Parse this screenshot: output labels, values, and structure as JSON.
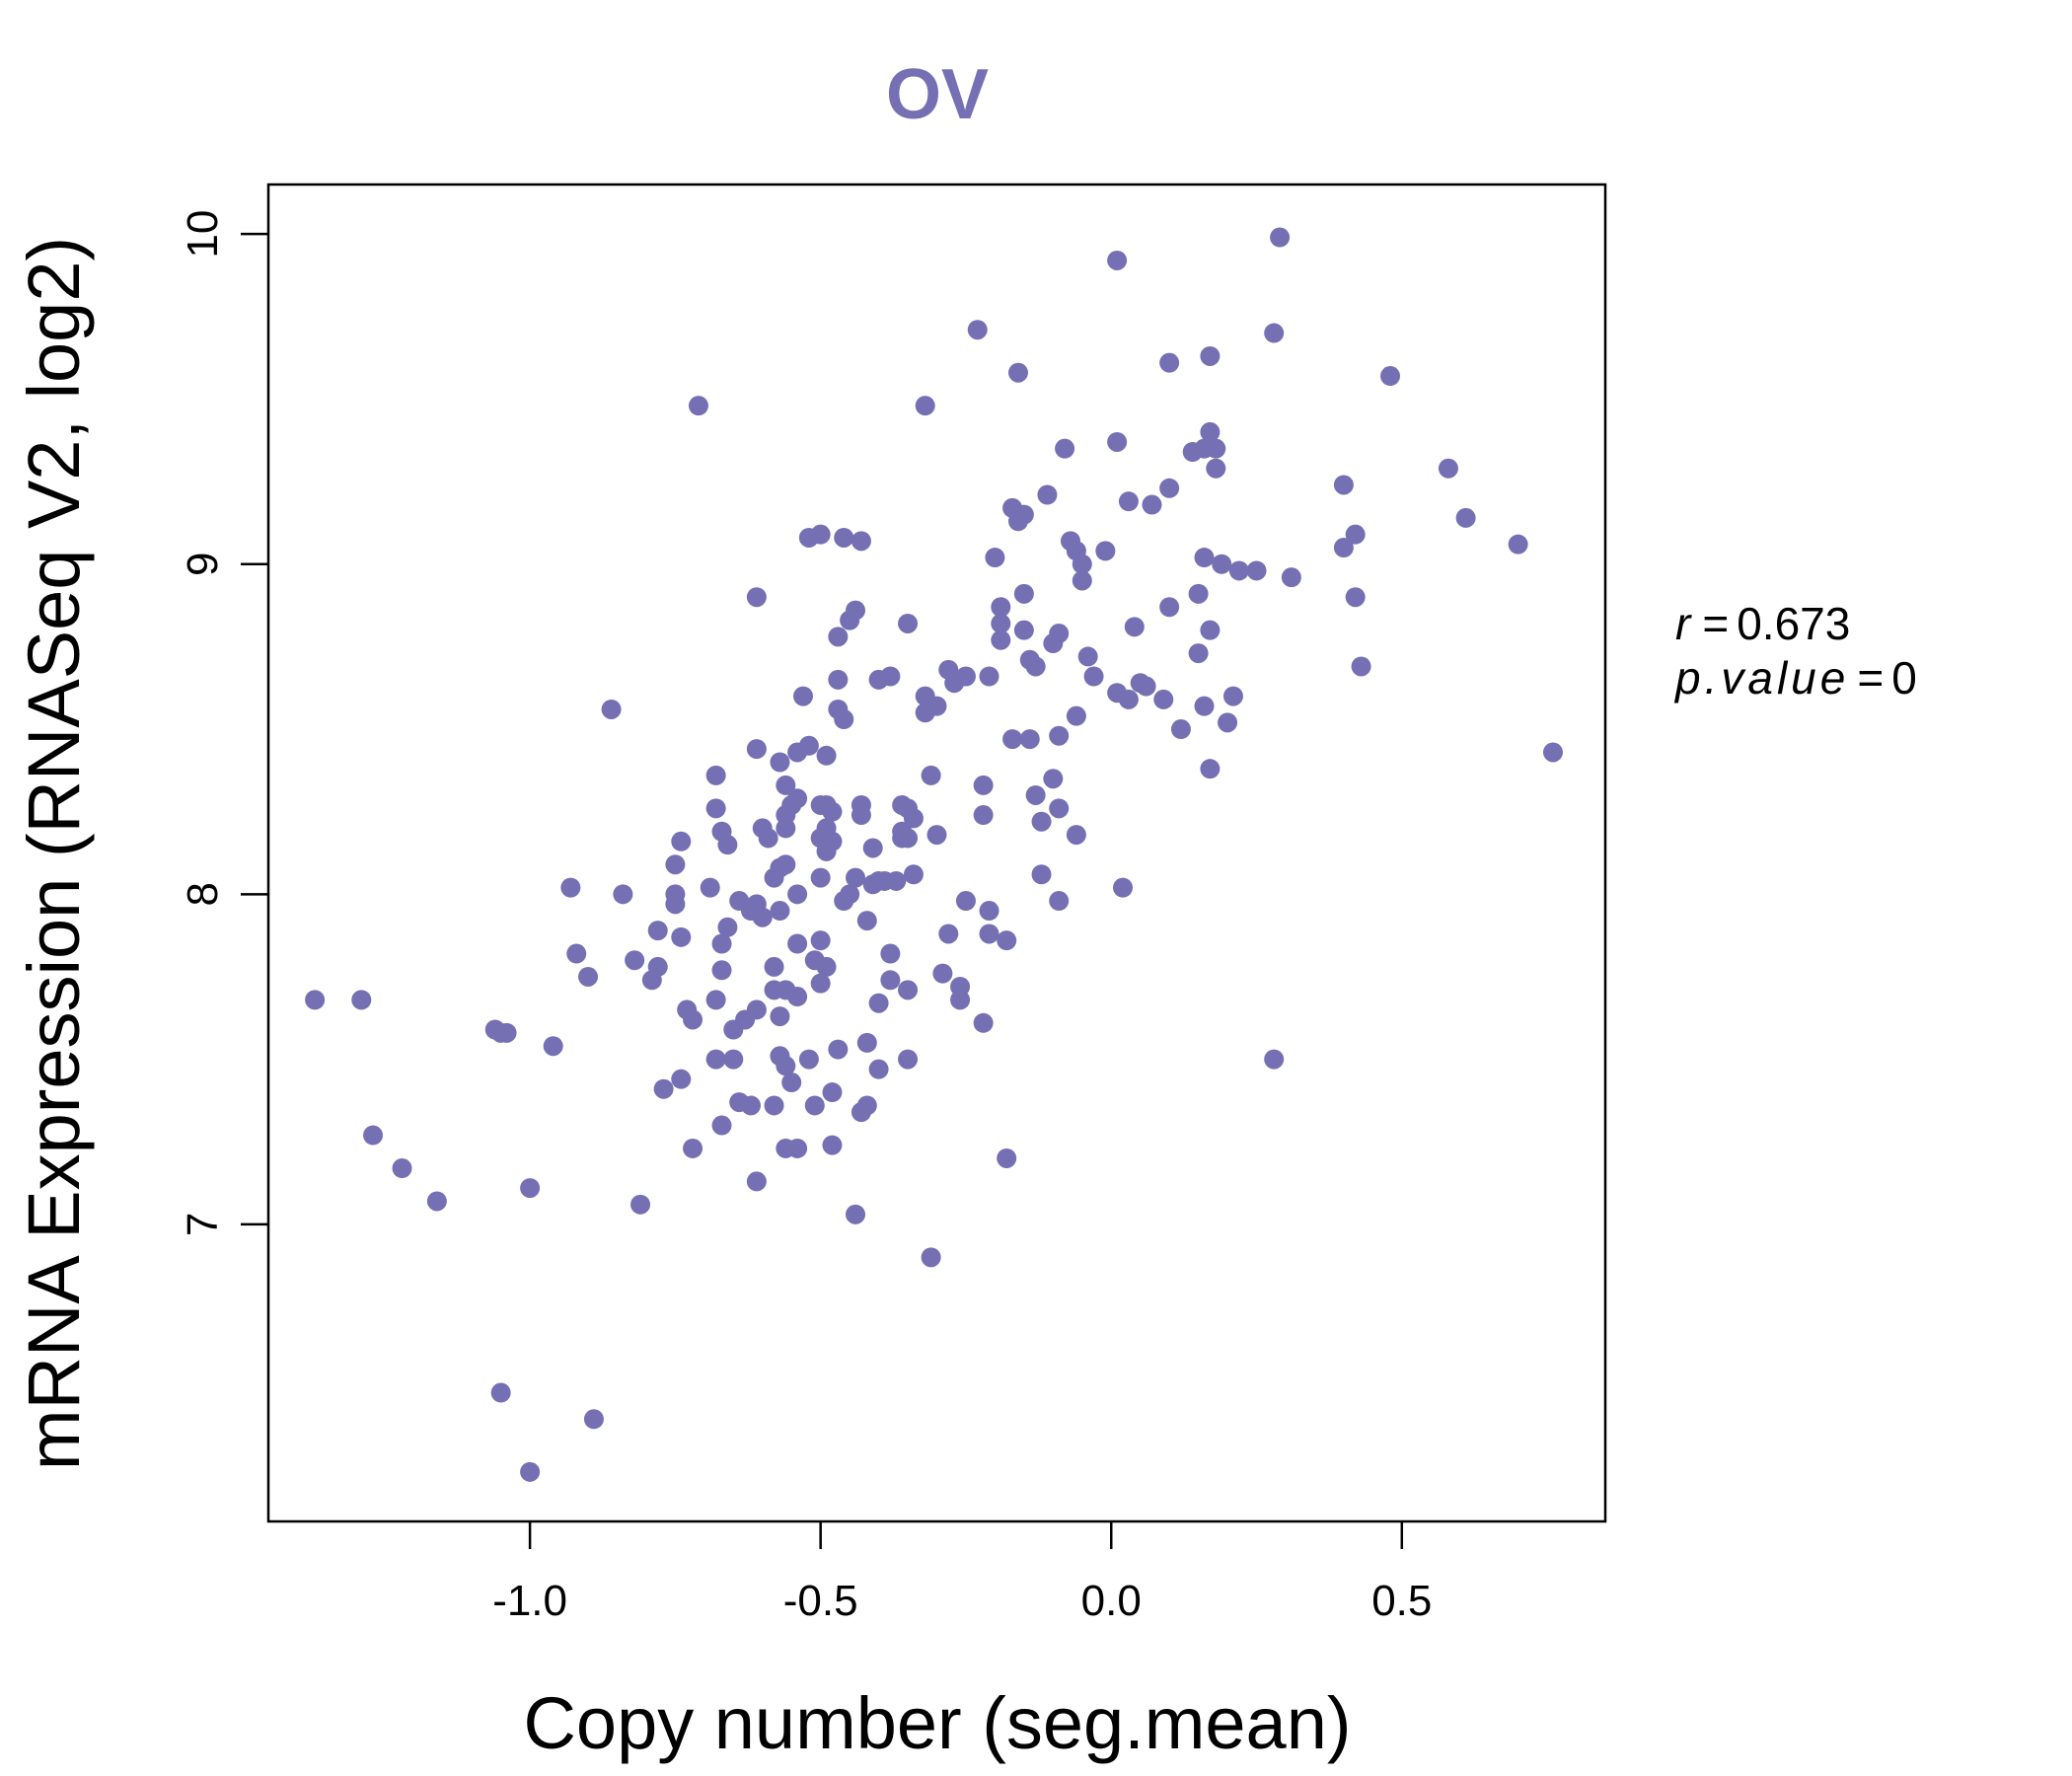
{
  "chart_data": {
    "type": "scatter",
    "title": "OV",
    "xlabel": "Copy number (seg.mean)",
    "ylabel": "mRNA Expression (RNASeq V2, log2)",
    "xlim": [
      -1.45,
      0.85
    ],
    "ylim": [
      6.1,
      10.15
    ],
    "xticks": [
      -1.0,
      -0.5,
      0.0,
      0.5
    ],
    "xtick_labels": [
      "-1.0",
      "-0.5",
      "0.0",
      "0.5"
    ],
    "yticks": [
      7,
      8,
      9,
      10
    ],
    "ytick_labels": [
      "7",
      "8",
      "9",
      "10"
    ],
    "color": "#7570b3",
    "stats": {
      "r_label": "r",
      "r_value": "0.673",
      "p_label": "p.value",
      "p_value": "0"
    },
    "points": [
      [
        -1.37,
        7.68
      ],
      [
        -1.29,
        7.68
      ],
      [
        -1.27,
        7.27
      ],
      [
        -1.22,
        7.17
      ],
      [
        -1.16,
        7.07
      ],
      [
        -1.06,
        7.59
      ],
      [
        -1.05,
        7.58
      ],
      [
        -1.05,
        6.49
      ],
      [
        -1.04,
        7.58
      ],
      [
        -1.0,
        7.11
      ],
      [
        -1.0,
        6.25
      ],
      [
        -0.96,
        7.54
      ],
      [
        -0.93,
        8.02
      ],
      [
        -0.92,
        7.82
      ],
      [
        -0.9,
        7.75
      ],
      [
        -0.89,
        6.41
      ],
      [
        -0.86,
        8.56
      ],
      [
        -0.84,
        8.0
      ],
      [
        -0.82,
        7.8
      ],
      [
        -0.81,
        7.06
      ],
      [
        -0.79,
        7.74
      ],
      [
        -0.78,
        7.89
      ],
      [
        -0.78,
        7.78
      ],
      [
        -0.77,
        7.41
      ],
      [
        -0.75,
        8.09
      ],
      [
        -0.75,
        8.0
      ],
      [
        -0.75,
        7.97
      ],
      [
        -0.74,
        8.16
      ],
      [
        -0.74,
        7.87
      ],
      [
        -0.74,
        7.44
      ],
      [
        -0.73,
        7.65
      ],
      [
        -0.72,
        7.23
      ],
      [
        -0.72,
        7.62
      ],
      [
        -0.71,
        9.48
      ],
      [
        -0.69,
        8.02
      ],
      [
        -0.68,
        8.36
      ],
      [
        -0.68,
        8.26
      ],
      [
        -0.68,
        7.68
      ],
      [
        -0.68,
        7.5
      ],
      [
        -0.67,
        8.19
      ],
      [
        -0.67,
        7.85
      ],
      [
        -0.67,
        7.77
      ],
      [
        -0.67,
        7.3
      ],
      [
        -0.66,
        8.15
      ],
      [
        -0.66,
        7.9
      ],
      [
        -0.65,
        7.59
      ],
      [
        -0.65,
        7.5
      ],
      [
        -0.64,
        7.98
      ],
      [
        -0.64,
        7.37
      ],
      [
        -0.63,
        7.62
      ],
      [
        -0.62,
        7.95
      ],
      [
        -0.62,
        7.36
      ],
      [
        -0.61,
        8.9
      ],
      [
        -0.61,
        8.44
      ],
      [
        -0.61,
        7.97
      ],
      [
        -0.61,
        7.65
      ],
      [
        -0.61,
        7.13
      ],
      [
        -0.6,
        8.2
      ],
      [
        -0.6,
        7.93
      ],
      [
        -0.59,
        8.17
      ],
      [
        -0.58,
        8.05
      ],
      [
        -0.58,
        7.78
      ],
      [
        -0.58,
        7.71
      ],
      [
        -0.58,
        7.36
      ],
      [
        -0.57,
        8.4
      ],
      [
        -0.57,
        8.08
      ],
      [
        -0.57,
        7.95
      ],
      [
        -0.57,
        7.63
      ],
      [
        -0.57,
        7.51
      ],
      [
        -0.56,
        8.33
      ],
      [
        -0.56,
        8.2
      ],
      [
        -0.56,
        8.24
      ],
      [
        -0.56,
        8.09
      ],
      [
        -0.56,
        7.71
      ],
      [
        -0.56,
        7.48
      ],
      [
        -0.56,
        7.23
      ],
      [
        -0.55,
        8.27
      ],
      [
        -0.55,
        7.43
      ],
      [
        -0.54,
        8.43
      ],
      [
        -0.54,
        8.29
      ],
      [
        -0.54,
        8.0
      ],
      [
        -0.54,
        7.85
      ],
      [
        -0.54,
        7.69
      ],
      [
        -0.54,
        7.23
      ],
      [
        -0.53,
        8.6
      ],
      [
        -0.52,
        8.45
      ],
      [
        -0.52,
        9.08
      ],
      [
        -0.52,
        7.5
      ],
      [
        -0.51,
        7.8
      ],
      [
        -0.51,
        7.36
      ],
      [
        -0.5,
        9.09
      ],
      [
        -0.5,
        8.27
      ],
      [
        -0.5,
        8.17
      ],
      [
        -0.5,
        8.05
      ],
      [
        -0.5,
        7.86
      ],
      [
        -0.5,
        7.73
      ],
      [
        -0.49,
        8.42
      ],
      [
        -0.49,
        8.27
      ],
      [
        -0.49,
        8.2
      ],
      [
        -0.49,
        8.13
      ],
      [
        -0.49,
        7.78
      ],
      [
        -0.48,
        8.25
      ],
      [
        -0.48,
        8.16
      ],
      [
        -0.48,
        7.4
      ],
      [
        -0.48,
        7.24
      ],
      [
        -0.47,
        8.78
      ],
      [
        -0.47,
        8.56
      ],
      [
        -0.47,
        8.65
      ],
      [
        -0.47,
        7.53
      ],
      [
        -0.46,
        9.08
      ],
      [
        -0.46,
        8.53
      ],
      [
        -0.46,
        7.98
      ],
      [
        -0.45,
        8.83
      ],
      [
        -0.45,
        8.0
      ],
      [
        -0.44,
        8.86
      ],
      [
        -0.44,
        8.05
      ],
      [
        -0.44,
        7.03
      ],
      [
        -0.43,
        9.07
      ],
      [
        -0.43,
        8.27
      ],
      [
        -0.43,
        8.24
      ],
      [
        -0.43,
        7.34
      ],
      [
        -0.42,
        7.92
      ],
      [
        -0.42,
        7.55
      ],
      [
        -0.42,
        7.36
      ],
      [
        -0.41,
        8.14
      ],
      [
        -0.41,
        8.03
      ],
      [
        -0.4,
        8.65
      ],
      [
        -0.4,
        8.04
      ],
      [
        -0.4,
        7.67
      ],
      [
        -0.4,
        7.47
      ],
      [
        -0.39,
        8.04
      ],
      [
        -0.38,
        8.66
      ],
      [
        -0.38,
        7.82
      ],
      [
        -0.38,
        7.74
      ],
      [
        -0.37,
        8.04
      ],
      [
        -0.36,
        8.27
      ],
      [
        -0.36,
        8.19
      ],
      [
        -0.36,
        8.17
      ],
      [
        -0.35,
        8.82
      ],
      [
        -0.35,
        8.26
      ],
      [
        -0.35,
        8.17
      ],
      [
        -0.35,
        7.71
      ],
      [
        -0.35,
        7.5
      ],
      [
        -0.34,
        8.23
      ],
      [
        -0.34,
        8.06
      ],
      [
        -0.32,
        9.48
      ],
      [
        -0.32,
        8.6
      ],
      [
        -0.32,
        8.55
      ],
      [
        -0.31,
        8.36
      ],
      [
        -0.31,
        6.9
      ],
      [
        -0.3,
        8.57
      ],
      [
        -0.3,
        8.18
      ],
      [
        -0.29,
        7.76
      ],
      [
        -0.28,
        8.68
      ],
      [
        -0.28,
        7.88
      ],
      [
        -0.27,
        8.64
      ],
      [
        -0.26,
        7.72
      ],
      [
        -0.26,
        7.68
      ],
      [
        -0.25,
        7.98
      ],
      [
        -0.25,
        8.66
      ],
      [
        -0.23,
        9.71
      ],
      [
        -0.22,
        8.33
      ],
      [
        -0.22,
        8.24
      ],
      [
        -0.22,
        7.61
      ],
      [
        -0.21,
        8.66
      ],
      [
        -0.21,
        7.95
      ],
      [
        -0.21,
        7.88
      ],
      [
        -0.2,
        9.02
      ],
      [
        -0.19,
        8.87
      ],
      [
        -0.19,
        8.82
      ],
      [
        -0.19,
        8.77
      ],
      [
        -0.18,
        7.2
      ],
      [
        -0.18,
        7.86
      ],
      [
        -0.17,
        9.17
      ],
      [
        -0.17,
        8.47
      ],
      [
        -0.16,
        9.58
      ],
      [
        -0.16,
        9.13
      ],
      [
        -0.15,
        9.15
      ],
      [
        -0.15,
        8.91
      ],
      [
        -0.15,
        8.8
      ],
      [
        -0.14,
        8.71
      ],
      [
        -0.14,
        8.47
      ],
      [
        -0.13,
        8.69
      ],
      [
        -0.13,
        8.3
      ],
      [
        -0.12,
        8.22
      ],
      [
        -0.12,
        8.06
      ],
      [
        -0.11,
        9.21
      ],
      [
        -0.1,
        8.76
      ],
      [
        -0.1,
        8.35
      ],
      [
        -0.09,
        8.79
      ],
      [
        -0.09,
        8.48
      ],
      [
        -0.09,
        8.26
      ],
      [
        -0.09,
        7.98
      ],
      [
        -0.08,
        9.35
      ],
      [
        -0.07,
        9.07
      ],
      [
        -0.06,
        9.04
      ],
      [
        -0.06,
        8.54
      ],
      [
        -0.06,
        8.18
      ],
      [
        -0.05,
        9.0
      ],
      [
        -0.05,
        8.95
      ],
      [
        -0.04,
        8.72
      ],
      [
        -0.03,
        8.66
      ],
      [
        -0.01,
        9.04
      ],
      [
        0.01,
        9.92
      ],
      [
        0.01,
        9.37
      ],
      [
        0.01,
        8.61
      ],
      [
        0.02,
        8.02
      ],
      [
        0.03,
        9.19
      ],
      [
        0.03,
        8.59
      ],
      [
        0.04,
        8.81
      ],
      [
        0.05,
        8.64
      ],
      [
        0.06,
        8.63
      ],
      [
        0.07,
        9.18
      ],
      [
        0.09,
        8.59
      ],
      [
        0.1,
        9.61
      ],
      [
        0.1,
        9.23
      ],
      [
        0.1,
        8.87
      ],
      [
        0.12,
        8.5
      ],
      [
        0.14,
        9.34
      ],
      [
        0.15,
        8.91
      ],
      [
        0.15,
        8.73
      ],
      [
        0.16,
        9.35
      ],
      [
        0.16,
        9.02
      ],
      [
        0.16,
        8.57
      ],
      [
        0.17,
        9.63
      ],
      [
        0.17,
        9.4
      ],
      [
        0.17,
        8.38
      ],
      [
        0.17,
        8.8
      ],
      [
        0.18,
        9.35
      ],
      [
        0.18,
        9.29
      ],
      [
        0.19,
        9.0
      ],
      [
        0.2,
        8.52
      ],
      [
        0.21,
        8.6
      ],
      [
        0.22,
        8.98
      ],
      [
        0.25,
        8.98
      ],
      [
        0.28,
        9.7
      ],
      [
        0.28,
        7.5
      ],
      [
        0.29,
        9.99
      ],
      [
        0.31,
        8.96
      ],
      [
        0.4,
        9.24
      ],
      [
        0.4,
        9.05
      ],
      [
        0.42,
        9.09
      ],
      [
        0.42,
        8.9
      ],
      [
        0.43,
        8.69
      ],
      [
        0.48,
        9.57
      ],
      [
        0.58,
        9.29
      ],
      [
        0.61,
        9.14
      ],
      [
        0.7,
        9.06
      ],
      [
        0.76,
        8.43
      ]
    ]
  }
}
